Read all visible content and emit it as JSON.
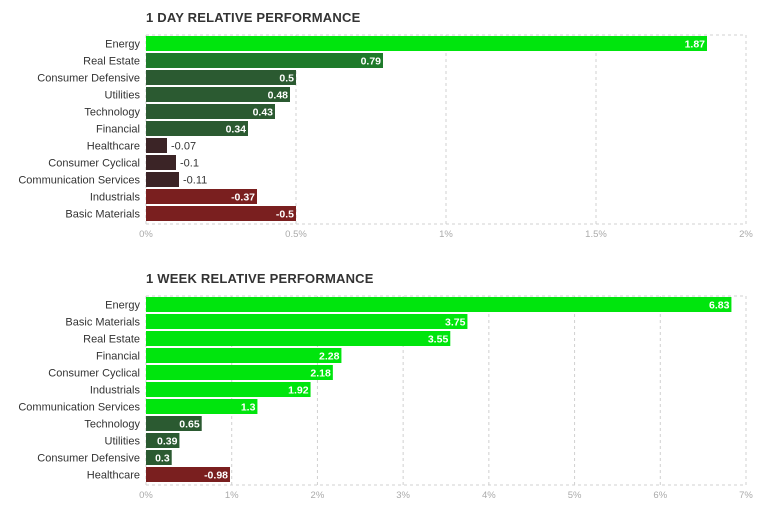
{
  "chart_data": [
    {
      "type": "bar",
      "orientation": "horizontal",
      "title": "1 DAY RELATIVE PERFORMANCE",
      "categories": [
        "Energy",
        "Real Estate",
        "Consumer Defensive",
        "Utilities",
        "Technology",
        "Financial",
        "Healthcare",
        "Consumer Cyclical",
        "Communication Services",
        "Industrials",
        "Basic Materials"
      ],
      "values": [
        1.87,
        0.79,
        0.5,
        0.48,
        0.43,
        0.34,
        -0.07,
        -0.1,
        -0.11,
        -0.37,
        -0.5
      ],
      "value_labels": [
        "1.87",
        "0.79",
        "0.5",
        "0.48",
        "0.43",
        "0.34",
        "-0.07",
        "-0.1",
        "-0.11",
        "-0.37",
        "-0.5"
      ],
      "xlim": [
        0,
        2
      ],
      "ticks": [
        0,
        0.5,
        1,
        1.5,
        2
      ],
      "tick_labels": [
        "0%",
        "0.5%",
        "1%",
        "1.5%",
        "2%"
      ],
      "grid": true,
      "colors": {
        "strong_positive": "#00e50d",
        "positive": "#1e7a2a",
        "weak_positive": "#2b5a31",
        "weak_negative": "#3b2426",
        "negative": "#7a1f1f",
        "grid": "#d0d0d0"
      }
    },
    {
      "type": "bar",
      "orientation": "horizontal",
      "title": "1 WEEK RELATIVE PERFORMANCE",
      "categories": [
        "Energy",
        "Basic Materials",
        "Real Estate",
        "Financial",
        "Consumer Cyclical",
        "Industrials",
        "Communication Services",
        "Technology",
        "Utilities",
        "Consumer Defensive",
        "Healthcare"
      ],
      "values": [
        6.83,
        3.75,
        3.55,
        2.28,
        2.18,
        1.92,
        1.3,
        0.65,
        0.39,
        0.3,
        -0.98
      ],
      "value_labels": [
        "6.83",
        "3.75",
        "3.55",
        "2.28",
        "2.18",
        "1.92",
        "1.3",
        "0.65",
        "0.39",
        "0.3",
        "-0.98"
      ],
      "xlim": [
        0,
        7
      ],
      "ticks": [
        0,
        1,
        2,
        3,
        4,
        5,
        6,
        7
      ],
      "tick_labels": [
        "0%",
        "1%",
        "2%",
        "3%",
        "4%",
        "5%",
        "6%",
        "7%"
      ],
      "grid": true,
      "colors": {
        "strong_positive": "#00e50d",
        "positive": "#1e7a2a",
        "weak_positive": "#2b5a31",
        "weak_negative": "#3b2426",
        "negative": "#7a1f1f",
        "grid": "#d0d0d0"
      }
    }
  ]
}
